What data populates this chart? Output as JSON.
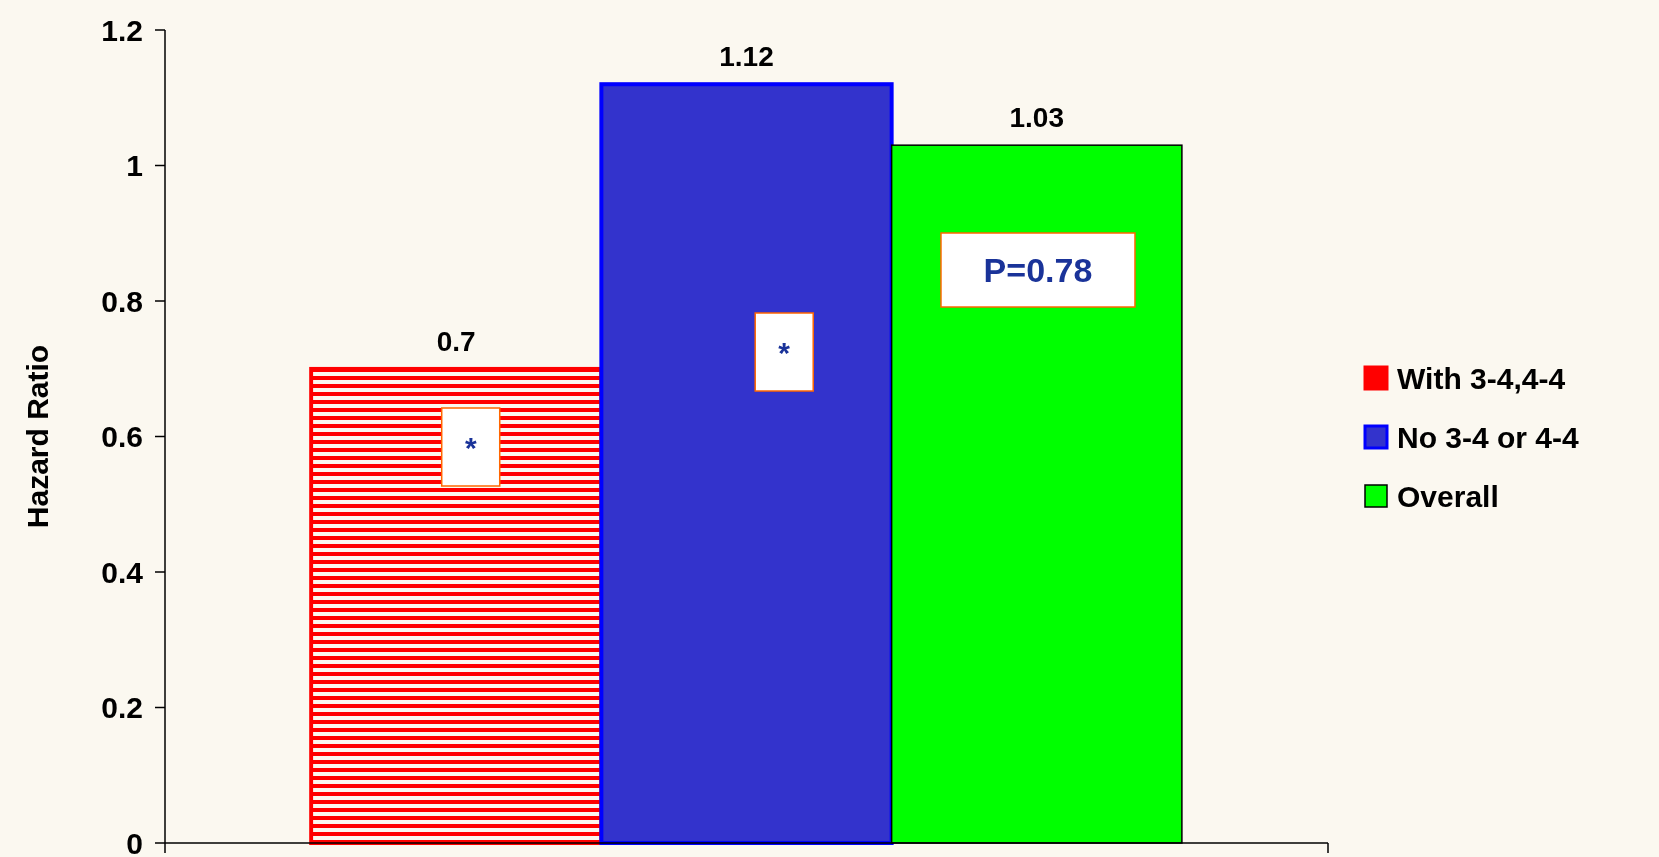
{
  "chart_data": {
    "type": "bar",
    "ylabel": "Hazard Ratio",
    "categories": [
      null
    ],
    "series": [
      {
        "name": "With 3-4,4-4",
        "color": "#ff0000",
        "values": [
          0.7
        ]
      },
      {
        "name": "No 3-4 or 4-4",
        "color": "#3333cc",
        "values": [
          1.12
        ]
      },
      {
        "name": "Overall",
        "color": "#00ff00",
        "values": [
          1.03
        ]
      }
    ],
    "ylim": [
      0,
      1.2
    ],
    "yticks": [
      0,
      0.2,
      0.4,
      0.6,
      0.8,
      1,
      1.2
    ],
    "data_labels": true,
    "legend": "right",
    "annotations": [
      "*",
      "*",
      "P=0.78"
    ]
  }
}
